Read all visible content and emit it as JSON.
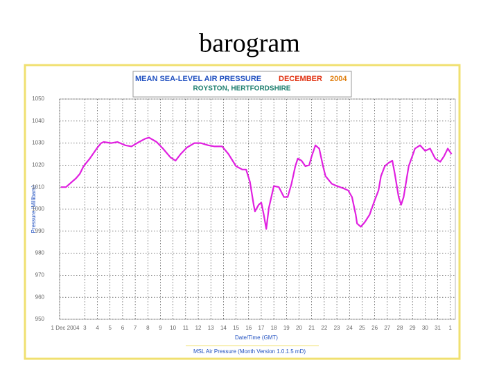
{
  "slide_title": "barogram",
  "chart_data": {
    "type": "line",
    "title": "MEAN SEA-LEVEL AIR PRESSURE",
    "title_month": "DECEMBER",
    "title_year": "2004",
    "subtitle": "ROYSTON, HERTFORDSHIRE",
    "ylabel": "Pressure (Millibars)",
    "xlabel": "Date/Time (GMT)",
    "footer": "MSL Air Pressure (Month Version 1.0.1.5 mD)",
    "ylim": [
      950,
      1050
    ],
    "yticks": [
      950,
      960,
      970,
      980,
      990,
      1000,
      1010,
      1020,
      1030,
      1040,
      1050
    ],
    "xlim": [
      1,
      32.4
    ],
    "xticks": [
      {
        "value": 1,
        "label": "1 Dec 2004"
      },
      3,
      4,
      5,
      6,
      7,
      8,
      9,
      10,
      11,
      12,
      13,
      14,
      15,
      16,
      17,
      18,
      19,
      20,
      21,
      22,
      23,
      24,
      25,
      26,
      27,
      28,
      29,
      30,
      31,
      {
        "value": 32,
        "label": "1"
      }
    ],
    "grid": true,
    "color": "#e020e0",
    "x": [
      1.1,
      1.5,
      1.8,
      2.3,
      2.6,
      2.9,
      3.4,
      4.0,
      4.3,
      4.5,
      5.1,
      5.6,
      6.2,
      6.7,
      7.3,
      7.8,
      8.1,
      8.7,
      9.2,
      9.8,
      10.2,
      10.6,
      11.1,
      11.7,
      12.2,
      12.8,
      13.3,
      13.9,
      14.4,
      15.0,
      15.5,
      15.8,
      16.1,
      16.4,
      16.5,
      16.8,
      17.0,
      17.2,
      17.4,
      17.6,
      18.0,
      18.4,
      18.8,
      19.1,
      19.4,
      19.7,
      19.9,
      20.2,
      20.5,
      20.8,
      21.0,
      21.3,
      21.6,
      21.9,
      22.1,
      22.6,
      23.0,
      23.5,
      23.9,
      24.2,
      24.5,
      24.6,
      24.9,
      25.2,
      25.6,
      26.0,
      26.3,
      26.5,
      26.8,
      27.1,
      27.4,
      27.6,
      27.9,
      28.1,
      28.3,
      28.7,
      29.2,
      29.6,
      30.0,
      30.4,
      30.8,
      31.2,
      31.5,
      31.8,
      32.1
    ],
    "values": [
      1010,
      1010,
      1011.5,
      1014,
      1016,
      1019.5,
      1023,
      1028,
      1030,
      1030.5,
      1030,
      1030.5,
      1029,
      1028.5,
      1030.5,
      1032,
      1032.5,
      1030.5,
      1027.5,
      1023.5,
      1022,
      1025,
      1028,
      1030,
      1030,
      1029,
      1028.5,
      1028.5,
      1025,
      1019.5,
      1018,
      1018,
      1012.5,
      1002,
      999,
      1002,
      1003,
      997.5,
      991,
      1000.5,
      1010.5,
      1010,
      1005.5,
      1005.5,
      1011.5,
      1019.5,
      1023,
      1022,
      1019.5,
      1020,
      1024,
      1029,
      1027.5,
      1019.5,
      1015,
      1011.5,
      1010.5,
      1009.5,
      1008.5,
      1005.5,
      997.5,
      993.5,
      992,
      994,
      997.5,
      1004,
      1008.5,
      1015,
      1019.5,
      1021,
      1022,
      1016,
      1005.5,
      1002,
      1005.5,
      1019.5,
      1027.5,
      1029,
      1026.5,
      1027.5,
      1023,
      1021.5,
      1024,
      1027.5,
      1025
    ]
  }
}
